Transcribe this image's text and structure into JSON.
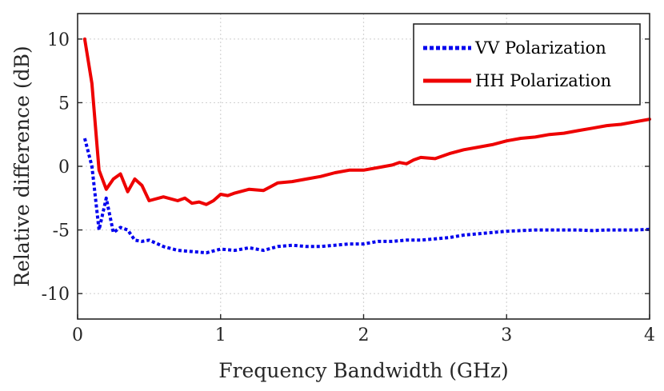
{
  "chart_data": {
    "type": "line",
    "title": "",
    "xlabel": "Frequency Bandwidth (GHz)",
    "ylabel": "Relative difference (dB)",
    "xlim": [
      0,
      4
    ],
    "ylim": [
      -12,
      12
    ],
    "grid": true,
    "legend_position": "top-right",
    "x_ticks": [
      {
        "value": 0,
        "label": "0"
      },
      {
        "value": 1,
        "label": "1"
      },
      {
        "value": 2,
        "label": "2"
      },
      {
        "value": 3,
        "label": "3"
      },
      {
        "value": 4,
        "label": "4"
      }
    ],
    "y_ticks": [
      {
        "value": 10,
        "label": "10"
      },
      {
        "value": 5,
        "label": "5"
      },
      {
        "value": 0,
        "label": "0"
      },
      {
        "value": -5,
        "label": "-5"
      },
      {
        "value": -10,
        "label": "-10"
      }
    ],
    "series": [
      {
        "name": "VV Polarization",
        "color": "#0000ee",
        "style": "dotted",
        "x": [
          0.05,
          0.1,
          0.15,
          0.2,
          0.25,
          0.3,
          0.35,
          0.4,
          0.45,
          0.5,
          0.6,
          0.7,
          0.8,
          0.9,
          1.0,
          1.1,
          1.2,
          1.3,
          1.4,
          1.5,
          1.6,
          1.7,
          1.8,
          1.9,
          2.0,
          2.1,
          2.2,
          2.3,
          2.4,
          2.5,
          2.6,
          2.7,
          2.8,
          2.9,
          3.0,
          3.1,
          3.2,
          3.3,
          3.4,
          3.5,
          3.6,
          3.7,
          3.8,
          3.9,
          4.0
        ],
        "y": [
          2.2,
          0.0,
          -5.0,
          -2.5,
          -5.2,
          -4.8,
          -5.0,
          -5.8,
          -5.9,
          -5.8,
          -6.3,
          -6.6,
          -6.7,
          -6.8,
          -6.5,
          -6.6,
          -6.4,
          -6.6,
          -6.3,
          -6.2,
          -6.3,
          -6.3,
          -6.2,
          -6.1,
          -6.1,
          -5.9,
          -5.9,
          -5.8,
          -5.8,
          -5.7,
          -5.6,
          -5.4,
          -5.3,
          -5.2,
          -5.1,
          -5.05,
          -5.0,
          -5.0,
          -5.0,
          -5.0,
          -5.05,
          -5.0,
          -5.0,
          -5.0,
          -4.95
        ]
      },
      {
        "name": "HH Polarization",
        "color": "#ee0000",
        "style": "solid",
        "x": [
          0.05,
          0.1,
          0.15,
          0.2,
          0.25,
          0.3,
          0.35,
          0.4,
          0.45,
          0.5,
          0.6,
          0.7,
          0.75,
          0.8,
          0.85,
          0.9,
          0.95,
          1.0,
          1.05,
          1.1,
          1.2,
          1.3,
          1.35,
          1.4,
          1.5,
          1.6,
          1.7,
          1.8,
          1.9,
          2.0,
          2.1,
          2.15,
          2.2,
          2.25,
          2.3,
          2.35,
          2.4,
          2.5,
          2.6,
          2.7,
          2.8,
          2.9,
          3.0,
          3.1,
          3.2,
          3.3,
          3.4,
          3.5,
          3.6,
          3.7,
          3.8,
          3.9,
          4.0
        ],
        "y": [
          10.0,
          6.5,
          -0.3,
          -1.8,
          -1.0,
          -0.6,
          -2.0,
          -1.0,
          -1.5,
          -2.7,
          -2.4,
          -2.7,
          -2.5,
          -2.9,
          -2.8,
          -3.0,
          -2.7,
          -2.2,
          -2.3,
          -2.1,
          -1.8,
          -1.9,
          -1.6,
          -1.3,
          -1.2,
          -1.0,
          -0.8,
          -0.5,
          -0.3,
          -0.3,
          -0.1,
          0.0,
          0.1,
          0.3,
          0.2,
          0.5,
          0.7,
          0.6,
          1.0,
          1.3,
          1.5,
          1.7,
          2.0,
          2.2,
          2.3,
          2.5,
          2.6,
          2.8,
          3.0,
          3.2,
          3.3,
          3.5,
          3.7
        ]
      }
    ]
  }
}
